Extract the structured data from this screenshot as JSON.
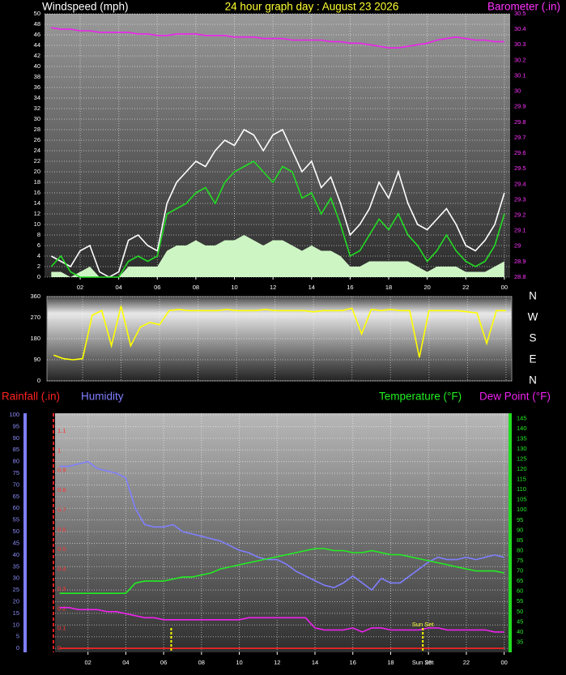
{
  "chart_data": [
    {
      "type": "line",
      "title": "24 hour graph day : August 23 2026",
      "ylabel": "Windspeed (mph)",
      "y2label": "Barometer (.in)",
      "grid": true,
      "x": [
        0.5,
        1,
        1.5,
        2,
        2.5,
        3,
        3.5,
        4,
        4.5,
        5,
        5.5,
        6,
        6.5,
        7,
        7.5,
        8,
        8.5,
        9,
        9.5,
        10,
        10.5,
        11,
        11.5,
        12,
        12.5,
        13,
        13.5,
        14,
        14.5,
        15,
        15.5,
        16,
        16.5,
        17,
        17.5,
        18,
        18.5,
        19,
        19.5,
        20,
        20.5,
        21,
        21.5,
        22,
        22.5,
        23,
        23.5,
        24
      ],
      "xlim": [
        0.15,
        24.3
      ],
      "xticks": [
        {
          "value": 2,
          "label": "02"
        },
        {
          "value": 4,
          "label": "04"
        },
        {
          "value": 6,
          "label": "06"
        },
        {
          "value": 8,
          "label": "08"
        },
        10,
        12,
        14,
        16,
        18,
        20,
        22,
        {
          "value": 24,
          "label": "00"
        }
      ],
      "ylim": [
        0,
        50
      ],
      "yticks": [
        0,
        2,
        4,
        6,
        8,
        10,
        12,
        14,
        16,
        18,
        20,
        22,
        24,
        26,
        28,
        30,
        32,
        34,
        36,
        38,
        40,
        42,
        44,
        46,
        48,
        50
      ],
      "y2lim": [
        28.8,
        30.5
      ],
      "y2ticks": [
        28.8,
        28.9,
        29,
        29.1,
        29.2,
        29.3,
        29.4,
        29.5,
        29.6,
        29.7,
        29.8,
        29.9,
        30,
        30.1,
        30.2,
        30.3,
        30.4,
        30.5
      ],
      "series": [
        {
          "kind": "area",
          "color": "#cdf5c4",
          "values": [
            1,
            1,
            0,
            1,
            2,
            0,
            0,
            0,
            2,
            2,
            2,
            2,
            5,
            6,
            6,
            7,
            6,
            6,
            7,
            7,
            8,
            7,
            6,
            7,
            7,
            6,
            5,
            6,
            5,
            5,
            4,
            2,
            2,
            3,
            3,
            3,
            3,
            3,
            2,
            1,
            2,
            2,
            2,
            1,
            1,
            1,
            2,
            3
          ]
        },
        {
          "color": "#ffffff",
          "values": [
            4,
            3,
            2,
            5,
            6,
            1,
            0,
            1,
            7,
            8,
            6,
            5,
            14,
            18,
            20,
            22,
            21,
            24,
            26,
            25,
            28,
            27,
            24,
            27,
            28,
            24,
            20,
            22,
            17,
            19,
            14,
            8,
            10,
            13,
            18,
            15,
            20,
            14,
            10,
            9,
            11,
            13,
            10,
            6,
            5,
            7,
            10,
            16
          ]
        },
        {
          "color": "#22dd22",
          "values": [
            2,
            4,
            1,
            0,
            0,
            0,
            0,
            0,
            3,
            4,
            3,
            4,
            12,
            13,
            14,
            16,
            17,
            14,
            18,
            20,
            21,
            22,
            20,
            18,
            21,
            20,
            15,
            16,
            12,
            15,
            10,
            4,
            5,
            8,
            11,
            9,
            12,
            8,
            6,
            3,
            5,
            8,
            5,
            3,
            2,
            3,
            6,
            12
          ]
        },
        {
          "color": "#ee22ee",
          "axis": "y2",
          "values": [
            30.41,
            30.4,
            30.4,
            30.39,
            30.39,
            30.38,
            30.38,
            30.38,
            30.38,
            30.37,
            30.37,
            30.36,
            30.36,
            30.37,
            30.37,
            30.37,
            30.36,
            30.36,
            30.36,
            30.35,
            30.35,
            30.35,
            30.34,
            30.34,
            30.34,
            30.33,
            30.33,
            30.33,
            30.33,
            30.32,
            30.32,
            30.31,
            30.31,
            30.3,
            30.29,
            30.28,
            30.28,
            30.29,
            30.3,
            30.31,
            30.33,
            30.34,
            30.35,
            30.34,
            30.33,
            30.33,
            30.32,
            30.32
          ]
        }
      ]
    },
    {
      "type": "line",
      "grid": true,
      "x": [
        0.5,
        1,
        1.5,
        2,
        2.5,
        3,
        3.5,
        4,
        4.5,
        5,
        5.5,
        6,
        6.5,
        7,
        7.5,
        8,
        8.5,
        9,
        9.5,
        10,
        10.5,
        11,
        11.5,
        12,
        12.5,
        13,
        13.5,
        14,
        14.5,
        15,
        15.5,
        16,
        16.5,
        17,
        17.5,
        18,
        18.5,
        19,
        19.5,
        20,
        20.5,
        21,
        21.5,
        22,
        22.5,
        23,
        23.5,
        24
      ],
      "xlim": [
        0.15,
        24.3
      ],
      "xticks": [
        2,
        4,
        6,
        8,
        10,
        12,
        14,
        16,
        18,
        20,
        22,
        24
      ],
      "ylim": [
        0,
        360
      ],
      "yticks": [
        0,
        90,
        180,
        270,
        360
      ],
      "y2lim": [
        0,
        360
      ],
      "y2ticks": [
        {
          "value": 360,
          "label": "N"
        },
        {
          "value": 270,
          "label": "W"
        },
        {
          "value": 180,
          "label": "S"
        },
        {
          "value": 90,
          "label": "E"
        },
        {
          "value": 0,
          "label": "N"
        }
      ],
      "series": [
        {
          "color": "#ffff00",
          "values": [
            110,
            95,
            90,
            95,
            280,
            300,
            150,
            320,
            150,
            230,
            250,
            240,
            300,
            305,
            300,
            300,
            300,
            300,
            305,
            300,
            300,
            300,
            305,
            300,
            300,
            300,
            300,
            295,
            300,
            300,
            300,
            310,
            200,
            305,
            300,
            305,
            300,
            300,
            100,
            300,
            300,
            300,
            300,
            295,
            290,
            160,
            300,
            300
          ]
        }
      ]
    },
    {
      "type": "line",
      "grid": true,
      "x": [
        0.5,
        1,
        1.5,
        2,
        2.5,
        3,
        3.5,
        4,
        4.5,
        5,
        5.5,
        6,
        6.5,
        7,
        7.5,
        8,
        8.5,
        9,
        9.5,
        10,
        10.5,
        11,
        11.5,
        12,
        12.5,
        13,
        13.5,
        14,
        14.5,
        15,
        15.5,
        16,
        16.5,
        17,
        17.5,
        18,
        18.5,
        19,
        19.5,
        20,
        20.5,
        21,
        21.5,
        22,
        22.5,
        23,
        23.5,
        24
      ],
      "xlim": [
        0.26,
        24.23
      ],
      "xticks": [
        {
          "value": 2,
          "label": "02"
        },
        {
          "value": 4,
          "label": "04"
        },
        {
          "value": 6,
          "label": "06"
        },
        {
          "value": 8,
          "label": "08"
        },
        10,
        12,
        14,
        16,
        18,
        20,
        22,
        {
          "value": 24,
          "label": "00"
        }
      ],
      "ylim": [
        -1.7,
        100.7
      ],
      "yticks": [
        0,
        5,
        10,
        15,
        20,
        25,
        30,
        35,
        40,
        45,
        50,
        55,
        60,
        65,
        70,
        75,
        80,
        85,
        90,
        95,
        100
      ],
      "y2lim": [
        30,
        147.5
      ],
      "y2ticks": [
        35,
        40,
        45,
        50,
        55,
        60,
        65,
        70,
        75,
        80,
        85,
        90,
        95,
        100,
        105,
        110,
        115,
        120,
        125,
        130,
        135,
        140,
        145
      ],
      "y3lim": [
        -0.02,
        1.19
      ],
      "y3ticks": [
        0,
        0.1,
        0.2,
        0.3,
        0.4,
        0.5,
        0.6,
        0.7,
        0.8,
        0.9,
        1,
        1.1
      ],
      "events": [
        {
          "x": 6.4
        },
        {
          "x": 19.7,
          "label": "Sun Set"
        }
      ],
      "series": [
        {
          "name": "Rainfall (.in)",
          "color": "#ff2222",
          "axis": "y3",
          "values": [
            0,
            0,
            0,
            0,
            0,
            0,
            0,
            0,
            0,
            0,
            0,
            0,
            0,
            0,
            0,
            0,
            0,
            0,
            0,
            0,
            0,
            0,
            0,
            0,
            0,
            0,
            0,
            0,
            0,
            0,
            0,
            0,
            0,
            0,
            0,
            0,
            0,
            0,
            0,
            0,
            0,
            0,
            0,
            0,
            0,
            0,
            0,
            0
          ]
        },
        {
          "name": "Humidity",
          "color": "#7f7fff",
          "values": [
            78,
            78,
            79,
            80,
            77,
            76,
            75,
            73,
            60,
            53,
            52,
            52,
            53,
            50,
            49,
            48,
            47,
            46,
            44,
            42,
            41,
            39,
            38,
            38,
            36,
            33,
            31,
            29,
            27,
            26,
            28,
            31,
            28,
            25,
            30,
            28,
            28,
            31,
            34,
            37,
            39,
            38,
            38,
            39,
            38,
            39,
            40,
            39
          ]
        },
        {
          "name": "Temperature (°F)",
          "color": "#22ee22",
          "axis": "y2",
          "values": [
            59,
            59,
            59,
            59,
            59,
            59,
            59,
            59,
            64,
            65,
            65,
            65,
            66,
            67,
            67,
            68,
            69,
            71,
            72,
            73,
            74,
            75,
            76,
            77,
            78,
            79,
            80,
            81,
            81,
            80,
            80,
            79,
            79,
            80,
            79,
            78,
            78,
            77,
            76,
            75,
            74,
            73,
            72,
            71,
            70,
            70,
            70,
            69
          ]
        },
        {
          "name": "Dew Point (°F)",
          "color": "#ee22ee",
          "axis": "y2",
          "values": [
            52,
            52,
            51,
            51,
            51,
            50,
            50,
            49,
            48,
            47,
            47,
            46,
            46,
            46,
            46,
            46,
            46,
            46,
            46,
            46,
            47,
            47,
            47,
            47,
            47,
            47,
            47,
            42,
            41,
            41,
            41,
            42,
            40,
            42,
            42,
            41,
            41,
            41,
            41,
            42,
            42,
            41,
            41,
            41,
            41,
            41,
            40,
            40
          ]
        }
      ]
    }
  ]
}
